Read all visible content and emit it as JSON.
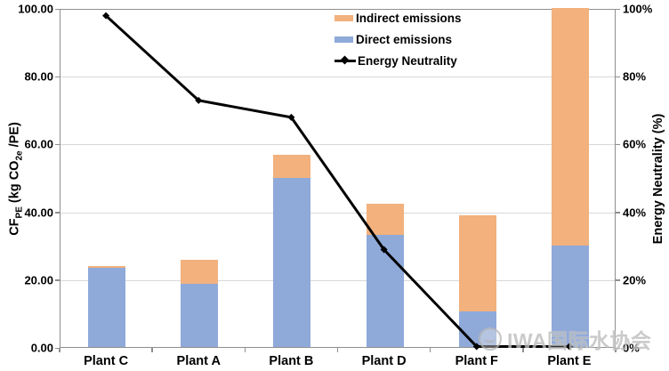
{
  "chart_data": {
    "type": "bar",
    "subtype": "stacked-bar-with-line-combo",
    "title": "",
    "categories": [
      "Plant C",
      "Plant A",
      "Plant B",
      "Plant D",
      "Plant F",
      "Plant E"
    ],
    "series": [
      {
        "name": "Direct emissions",
        "type": "bar",
        "stack": "emissions",
        "color": "#8fa9d9",
        "axis": "left",
        "values": [
          23.4,
          18.6,
          50.0,
          33.0,
          10.4,
          29.8
        ]
      },
      {
        "name": "Indirect emissions",
        "type": "bar",
        "stack": "emissions",
        "color": "#f2b17d",
        "axis": "left",
        "values": [
          0.5,
          7.1,
          6.7,
          9.3,
          28.4,
          70.2
        ]
      },
      {
        "name": "Energy Neutrality",
        "type": "line",
        "color": "#000000",
        "marker": "diamond",
        "axis": "right",
        "values": [
          98,
          73,
          68,
          29,
          0,
          0
        ]
      }
    ],
    "y_left": {
      "title_parts": {
        "t1": "CF",
        "s1": "PE",
        "t2": " (kg CO",
        "s2": "2e",
        "t3": " /PE)"
      },
      "ticks": [
        "100.00",
        "80.00",
        "60.00",
        "40.00",
        "20.00",
        "0.00"
      ],
      "range": [
        0,
        100
      ],
      "grid": true
    },
    "y_right": {
      "title": "Energy Neutrality (%)",
      "ticks": [
        "100%",
        "80%",
        "60%",
        "40%",
        "20%",
        "0%"
      ],
      "range": [
        0,
        100
      ]
    },
    "legend": {
      "position": "inside-top-right",
      "items": [
        {
          "label": "Indirect emissions",
          "symbol": "swatch",
          "color": "#f2b17d"
        },
        {
          "label": "Direct emissions",
          "symbol": "swatch",
          "color": "#8fa9d9"
        },
        {
          "label": "Energy Neutrality",
          "symbol": "line-diamond",
          "color": "#000000"
        }
      ]
    },
    "colors": {
      "indirect": "#f2b17d",
      "direct": "#8fa9d9",
      "line": "#000000",
      "gridline": "#d9d9d9",
      "axis_border": "#8f8f8f",
      "background": "#ffffff",
      "watermark": "#bdbdbd"
    }
  },
  "watermark": {
    "text": "IWA国际水协会"
  }
}
